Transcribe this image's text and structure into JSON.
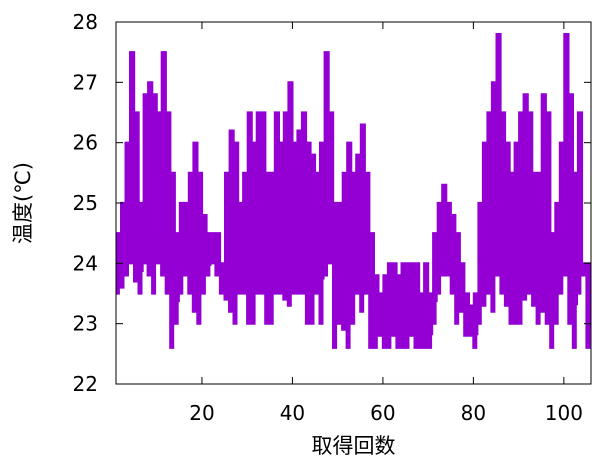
{
  "chart_data": {
    "type": "line",
    "title": "",
    "xlabel": "取得回数",
    "ylabel": "温度(℃)",
    "xlim": [
      1,
      106
    ],
    "ylim": [
      22,
      28
    ],
    "xticks": [
      20,
      40,
      60,
      80,
      100
    ],
    "yticks": [
      22,
      23,
      24,
      25,
      26,
      27,
      28
    ],
    "line_style": "steps",
    "grid": false,
    "legend": "none",
    "series": [
      {
        "color": "#9400D3",
        "x": [
          1,
          2,
          3,
          4,
          5,
          6,
          7,
          8,
          9,
          10,
          11,
          12,
          13,
          14,
          15,
          16,
          17,
          18,
          19,
          20,
          21,
          22,
          23,
          24,
          25,
          26,
          27,
          28,
          29,
          30,
          31,
          32,
          33,
          34,
          35,
          36,
          37,
          38,
          39,
          40,
          41,
          42,
          43,
          44,
          45,
          46,
          47,
          48,
          49,
          50,
          51,
          52,
          53,
          54,
          55,
          56,
          57,
          58,
          59,
          60,
          61,
          62,
          63,
          64,
          65,
          66,
          67,
          68,
          69,
          70,
          71,
          72,
          73,
          74,
          75,
          76,
          77,
          78,
          79,
          80,
          81,
          82,
          83,
          84,
          85,
          86,
          87,
          88,
          89,
          90,
          91,
          92,
          93,
          94,
          95,
          96,
          97,
          98,
          99,
          100,
          101,
          102,
          103,
          104,
          105,
          106
        ],
        "min": [
          23.5,
          23.6,
          23.8,
          24.0,
          23.7,
          23.5,
          24.0,
          23.8,
          23.5,
          24.0,
          23.8,
          23.5,
          22.6,
          23.0,
          23.5,
          23.8,
          23.5,
          23.2,
          23.0,
          23.5,
          23.8,
          24.0,
          23.8,
          23.5,
          23.4,
          23.2,
          23.0,
          23.5,
          23.5,
          23.0,
          23.0,
          23.5,
          23.5,
          23.0,
          23.0,
          23.5,
          23.5,
          23.4,
          23.3,
          23.5,
          23.5,
          23.5,
          23.0,
          23.0,
          23.5,
          23.0,
          23.8,
          24.0,
          22.6,
          23.0,
          22.9,
          22.6,
          23.0,
          23.5,
          23.2,
          23.5,
          22.6,
          22.6,
          22.8,
          22.6,
          22.6,
          22.8,
          22.6,
          22.6,
          22.6,
          22.8,
          22.6,
          22.6,
          22.6,
          22.6,
          23.0,
          23.5,
          23.8,
          23.8,
          23.5,
          23.0,
          23.2,
          22.8,
          22.8,
          22.6,
          23.0,
          23.3,
          23.5,
          23.2,
          23.8,
          23.5,
          23.3,
          23.0,
          23.0,
          23.0,
          23.4,
          23.5,
          23.3,
          23.0,
          23.2,
          23.0,
          22.6,
          23.0,
          23.5,
          23.8,
          23.0,
          22.6,
          23.5,
          23.8,
          22.6,
          23.0
        ],
        "max": [
          24.5,
          25.0,
          26.0,
          27.5,
          26.5,
          25.0,
          26.8,
          27.0,
          26.8,
          26.5,
          27.5,
          26.5,
          25.5,
          24.5,
          25.0,
          25.0,
          25.5,
          26.0,
          25.5,
          24.8,
          24.5,
          24.5,
          24.5,
          24.0,
          25.5,
          26.2,
          26.0,
          25.0,
          25.5,
          26.5,
          26.0,
          26.5,
          26.5,
          25.5,
          25.5,
          26.5,
          26.0,
          26.5,
          27.0,
          26.0,
          26.2,
          26.5,
          26.0,
          25.8,
          25.5,
          26.0,
          27.5,
          26.5,
          25.0,
          25.0,
          25.5,
          26.0,
          25.5,
          25.8,
          26.3,
          25.5,
          24.5,
          23.8,
          23.5,
          23.8,
          24.0,
          24.0,
          23.8,
          24.0,
          24.0,
          24.0,
          24.0,
          23.5,
          24.0,
          23.5,
          24.5,
          25.0,
          25.3,
          25.0,
          24.8,
          24.5,
          24.0,
          23.5,
          23.3,
          23.5,
          25.0,
          26.0,
          26.5,
          27.0,
          27.8,
          26.5,
          26.0,
          25.5,
          26.0,
          26.5,
          26.8,
          26.5,
          25.5,
          25.5,
          26.8,
          26.5,
          24.5,
          25.0,
          26.0,
          27.8,
          26.8,
          25.5,
          26.5,
          24.0,
          24.0,
          23.5
        ]
      }
    ]
  }
}
